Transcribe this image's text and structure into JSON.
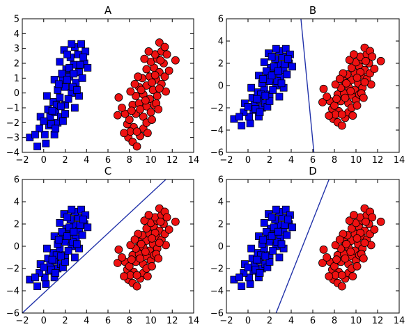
{
  "chart_data": [
    {
      "type": "scatter",
      "title": "A",
      "xlim": [
        -2,
        14
      ],
      "ylim": [
        -4,
        5
      ],
      "xticks": [
        -2,
        0,
        2,
        4,
        6,
        8,
        10,
        12,
        14
      ],
      "yticks": [
        -4,
        -3,
        -2,
        -1,
        0,
        1,
        2,
        3,
        4,
        5
      ],
      "separator": null
    },
    {
      "type": "scatter",
      "title": "B",
      "xlim": [
        -2,
        14
      ],
      "ylim": [
        -6,
        6
      ],
      "xticks": [
        -2,
        0,
        2,
        4,
        6,
        8,
        10,
        12,
        14
      ],
      "yticks": [
        -6,
        -4,
        -2,
        0,
        2,
        4,
        6
      ],
      "separator": [
        [
          4.9,
          6
        ],
        [
          6.1,
          -6
        ]
      ]
    },
    {
      "type": "scatter",
      "title": "C",
      "xlim": [
        -2,
        14
      ],
      "ylim": [
        -6,
        6
      ],
      "xticks": [
        -2,
        0,
        2,
        4,
        6,
        8,
        10,
        12,
        14
      ],
      "yticks": [
        -6,
        -4,
        -2,
        0,
        2,
        4,
        6
      ],
      "separator": [
        [
          -2,
          -6
        ],
        [
          11.4,
          6
        ]
      ]
    },
    {
      "type": "scatter",
      "title": "D",
      "xlim": [
        -2,
        14
      ],
      "ylim": [
        -6,
        6
      ],
      "xticks": [
        -2,
        0,
        2,
        4,
        6,
        8,
        10,
        12,
        14
      ],
      "yticks": [
        -6,
        -4,
        -2,
        0,
        2,
        4,
        6
      ],
      "separator": [
        [
          2.6,
          -6
        ],
        [
          7.5,
          6
        ]
      ]
    }
  ],
  "clusters": {
    "blue": {
      "marker": "square",
      "color": "#0000ee",
      "points": [
        [
          -1.3,
          -3.0
        ],
        [
          -0.6,
          -3.6
        ],
        [
          0.2,
          -3.4
        ],
        [
          0.1,
          -2.8
        ],
        [
          -0.4,
          -2.4
        ],
        [
          0.5,
          -2.2
        ],
        [
          1.0,
          -2.8
        ],
        [
          1.3,
          -2.0
        ],
        [
          0.6,
          -1.6
        ],
        [
          -0.3,
          -1.6
        ],
        [
          0.4,
          -1.1
        ],
        [
          1.1,
          -1.3
        ],
        [
          1.6,
          -1.6
        ],
        [
          0.9,
          -0.6
        ],
        [
          1.5,
          -0.3
        ],
        [
          2.0,
          -0.8
        ],
        [
          1.3,
          0.2
        ],
        [
          2.0,
          0.4
        ],
        [
          2.6,
          0.0
        ],
        [
          1.8,
          0.9
        ],
        [
          2.4,
          1.1
        ],
        [
          3.0,
          0.7
        ],
        [
          2.1,
          1.6
        ],
        [
          2.8,
          1.9
        ],
        [
          3.3,
          1.4
        ],
        [
          2.5,
          2.4
        ],
        [
          3.2,
          2.6
        ],
        [
          3.8,
          2.0
        ],
        [
          2.9,
          3.1
        ],
        [
          3.5,
          3.3
        ],
        [
          1.9,
          2.9
        ],
        [
          2.7,
          0.4
        ],
        [
          1.2,
          -0.8
        ],
        [
          0.7,
          -2.1
        ],
        [
          1.7,
          1.3
        ],
        [
          2.3,
          -0.4
        ],
        [
          3.6,
          1.0
        ],
        [
          1.5,
          2.1
        ],
        [
          2.9,
          -1.0
        ],
        [
          0.3,
          -0.2
        ],
        [
          4.1,
          1.7
        ],
        [
          3.9,
          2.8
        ],
        [
          2.2,
          2.6
        ],
        [
          1.0,
          0.9
        ],
        [
          3.3,
          -0.2
        ],
        [
          1.8,
          -1.9
        ],
        [
          2.6,
          3.3
        ],
        [
          3.1,
          0.2
        ],
        [
          2.0,
          -1.4
        ],
        [
          -0.8,
          -2.8
        ],
        [
          1.4,
          0.6
        ],
        [
          2.4,
          1.7
        ],
        [
          0.8,
          -1.2
        ],
        [
          1.6,
          -0.9
        ],
        [
          3.4,
          1.9
        ],
        [
          2.2,
          0.9
        ],
        [
          1.1,
          -2.4
        ],
        [
          2.8,
          1.3
        ],
        [
          3.7,
          2.4
        ],
        [
          0.0,
          -1.9
        ]
      ]
    },
    "red": {
      "marker": "circle",
      "color": "#ee1111",
      "points": [
        [
          6.9,
          -1.5
        ],
        [
          7.6,
          -1.4
        ],
        [
          7.9,
          -3.0
        ],
        [
          8.3,
          -3.3
        ],
        [
          8.7,
          -3.6
        ],
        [
          9.0,
          -2.9
        ],
        [
          8.4,
          -2.3
        ],
        [
          9.3,
          -2.4
        ],
        [
          7.8,
          -2.1
        ],
        [
          8.0,
          -1.8
        ],
        [
          8.6,
          -1.4
        ],
        [
          9.3,
          -1.6
        ],
        [
          9.6,
          -2.0
        ],
        [
          8.3,
          -0.8
        ],
        [
          8.9,
          -0.7
        ],
        [
          9.6,
          -0.9
        ],
        [
          10.0,
          -1.3
        ],
        [
          8.6,
          -0.2
        ],
        [
          9.3,
          -0.1
        ],
        [
          9.9,
          -0.4
        ],
        [
          10.3,
          -0.8
        ],
        [
          8.9,
          0.4
        ],
        [
          9.6,
          0.5
        ],
        [
          10.2,
          0.2
        ],
        [
          10.6,
          -0.2
        ],
        [
          9.2,
          1.0
        ],
        [
          9.9,
          1.1
        ],
        [
          10.5,
          0.9
        ],
        [
          11.0,
          0.6
        ],
        [
          9.6,
          1.6
        ],
        [
          10.3,
          1.7
        ],
        [
          10.8,
          1.4
        ],
        [
          11.3,
          1.1
        ],
        [
          10.0,
          2.1
        ],
        [
          10.6,
          2.3
        ],
        [
          11.2,
          2.0
        ],
        [
          10.4,
          2.6
        ],
        [
          11.0,
          2.8
        ],
        [
          10.8,
          3.4
        ],
        [
          11.3,
          3.1
        ],
        [
          12.3,
          2.2
        ],
        [
          10.5,
          -0.7
        ],
        [
          7.3,
          -1.0
        ],
        [
          8.1,
          -2.6
        ],
        [
          9.7,
          -2.7
        ],
        [
          10.7,
          -1.1
        ],
        [
          11.4,
          0.1
        ],
        [
          10.9,
          2.2
        ],
        [
          8.1,
          0.1
        ],
        [
          8.8,
          1.1
        ],
        [
          11.7,
          1.5
        ],
        [
          9.4,
          2.3
        ],
        [
          10.1,
          -1.8
        ],
        [
          7.5,
          -2.7
        ],
        [
          9.0,
          -1.1
        ],
        [
          8.5,
          0.6
        ],
        [
          10.8,
          0.3
        ],
        [
          11.5,
          2.6
        ],
        [
          9.8,
          2.8
        ],
        [
          7.0,
          -0.3
        ],
        [
          8.2,
          -1.2
        ],
        [
          9.5,
          -0.5
        ],
        [
          10.4,
          1.2
        ],
        [
          8.7,
          -2.6
        ],
        [
          9.1,
          0.2
        ],
        [
          10.1,
          0.7
        ]
      ]
    }
  }
}
